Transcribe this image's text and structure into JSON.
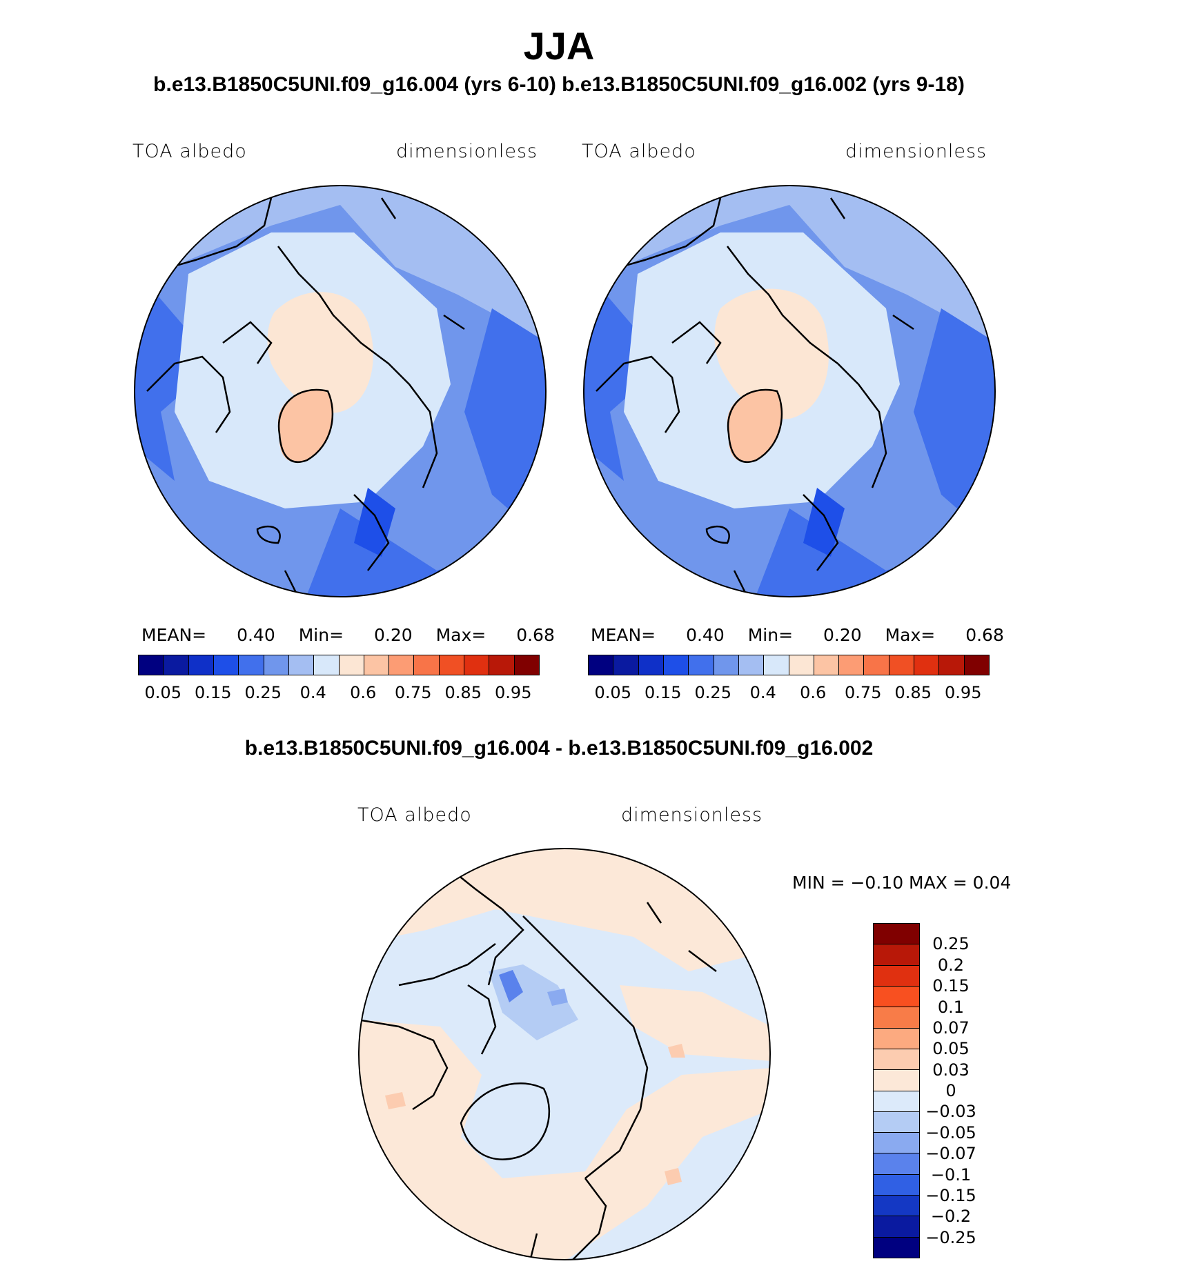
{
  "title": "JJA",
  "subtitle": "b.e13.B1850C5UNI.f09_g16.004 (yrs 6-10) b.e13.B1850C5UNI.f09_g16.002 (yrs 9-18)",
  "diff_title": "b.e13.B1850C5UNI.f09_g16.004 - b.e13.B1850C5UNI.f09_g16.002",
  "panels": [
    {
      "left_label": "TOA albedo",
      "right_label": "dimensionless",
      "stats": {
        "mean_label": "MEAN=",
        "mean": "0.40",
        "min_label": "Min=",
        "min": "0.20",
        "max_label": "Max=",
        "max": "0.68"
      },
      "colorbar_labels": [
        "0.05",
        "0.15",
        "0.25",
        "0.4",
        "0.6",
        "0.75",
        "0.85",
        "0.95"
      ]
    },
    {
      "left_label": "TOA albedo",
      "right_label": "dimensionless",
      "stats": {
        "mean_label": "MEAN=",
        "mean": "0.40",
        "min_label": "Min=",
        "min": "0.20",
        "max_label": "Max=",
        "max": "0.68"
      },
      "colorbar_labels": [
        "0.05",
        "0.15",
        "0.25",
        "0.4",
        "0.6",
        "0.75",
        "0.85",
        "0.95"
      ]
    },
    {
      "left_label": "TOA albedo",
      "right_label": "dimensionless",
      "stats_text": "MIN =   −0.10 MAX =    0.04",
      "colorbar_labels": [
        "0.25",
        "0.2",
        "0.15",
        "0.1",
        "0.07",
        "0.05",
        "0.03",
        "0",
        "−0.03",
        "−0.05",
        "−0.07",
        "−0.1",
        "−0.15",
        "−0.2",
        "−0.25"
      ]
    }
  ],
  "colors": {
    "abs_colorbar": [
      "#000080",
      "#0a1aa0",
      "#0f30c8",
      "#1e4fe8",
      "#4170ec",
      "#7096ec",
      "#a4bef2",
      "#d8e8fa",
      "#fce6d4",
      "#fcc4a4",
      "#fc9c74",
      "#f87448",
      "#f05024",
      "#e03010",
      "#b81808",
      "#800000"
    ],
    "diff_colorbar": [
      "#800000",
      "#b81808",
      "#e03010",
      "#f85020",
      "#f87c48",
      "#fcaa80",
      "#fcccb0",
      "#fce8d8",
      "#dceafa",
      "#b4ccf4",
      "#8aaaf0",
      "#5a82ec",
      "#3060e4",
      "#1438c4",
      "#0a1aa0",
      "#000080"
    ]
  }
}
